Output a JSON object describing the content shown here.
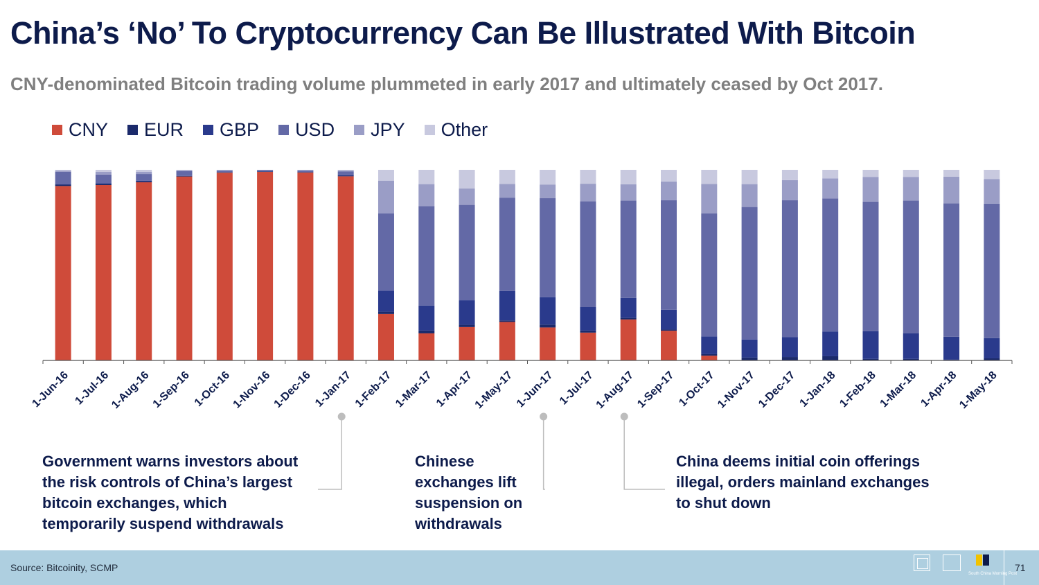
{
  "header": {
    "title": "China’s ‘No’ To Cryptocurrency Can Be Illustrated With Bitcoin",
    "subtitle": "CNY-denominated Bitcoin trading volume plummeted in early 2017 and ultimately ceased by Oct 2017."
  },
  "legend": [
    {
      "label": "CNY",
      "color": "#cf4b3a"
    },
    {
      "label": "EUR",
      "color": "#1b2a6b"
    },
    {
      "label": "GBP",
      "color": "#2a3a8c"
    },
    {
      "label": "USD",
      "color": "#6369a6"
    },
    {
      "label": "JPY",
      "color": "#9a9dc6"
    },
    {
      "label": "Other",
      "color": "#c8c9df"
    }
  ],
  "chart_data": {
    "type": "bar",
    "stacked": true,
    "ylim": [
      0,
      100
    ],
    "unit": "% of trading volume",
    "categories": [
      "1-Jun-16",
      "1-Jul-16",
      "1-Aug-16",
      "1-Sep-16",
      "1-Oct-16",
      "1-Nov-16",
      "1-Dec-16",
      "1-Jan-17",
      "1-Feb-17",
      "1-Mar-17",
      "1-Apr-17",
      "1-May-17",
      "1-Jun-17",
      "1-Jul-17",
      "1-Aug-17",
      "1-Sep-17",
      "1-Oct-17",
      "1-Nov-17",
      "1-Dec-17",
      "1-Jan-18",
      "1-Feb-18",
      "1-Mar-18",
      "1-Apr-18",
      "1-May-18"
    ],
    "series": [
      {
        "name": "CNY",
        "color": "#cf4b3a",
        "values": [
          91.5,
          92.0,
          93.5,
          96.5,
          98.5,
          98.9,
          98.6,
          96.6,
          24.4,
          14.2,
          17.5,
          20.2,
          17.3,
          14.6,
          21.5,
          15.6,
          2.5,
          0,
          0,
          0,
          0,
          0,
          0,
          0
        ]
      },
      {
        "name": "EUR",
        "color": "#1b2a6b",
        "values": [
          0.7,
          0.7,
          0.5,
          0.3,
          0.2,
          0.2,
          0.2,
          0.3,
          1.2,
          1.5,
          1.2,
          0.8,
          1.5,
          1.1,
          0.8,
          0.6,
          0.8,
          1.5,
          1.8,
          2.2,
          0.8,
          0.8,
          0.4,
          1.1
        ]
      },
      {
        "name": "GBP",
        "color": "#2a3a8c",
        "values": [
          0.3,
          0.3,
          0.3,
          0.2,
          0.1,
          0.1,
          0.1,
          0.2,
          11.0,
          13.1,
          12.9,
          15.4,
          14.4,
          12.3,
          10.5,
          10.4,
          9.3,
          9.5,
          10.5,
          13.0,
          14.5,
          13.5,
          12.0,
          10.6
        ]
      },
      {
        "name": "USD",
        "color": "#6369a6",
        "values": [
          6.5,
          4.5,
          3.5,
          2.3,
          0.8,
          0.6,
          0.8,
          2.0,
          40.5,
          52.2,
          50.0,
          49.0,
          52.0,
          55.5,
          51.0,
          57.5,
          64.5,
          69.5,
          71.8,
          69.8,
          68.0,
          69.5,
          70.0,
          70.5
        ]
      },
      {
        "name": "JPY",
        "color": "#9a9dc6",
        "values": [
          0.6,
          1.5,
          1.2,
          0.5,
          0.3,
          0.2,
          0.2,
          0.6,
          17.2,
          11.5,
          8.6,
          7.2,
          7.1,
          9.2,
          8.6,
          9.8,
          15.5,
          12.0,
          10.5,
          10.5,
          13.0,
          12.5,
          14.0,
          13.0
        ]
      },
      {
        "name": "Other",
        "color": "#c8c9df",
        "values": [
          0.4,
          1.0,
          1.0,
          0.2,
          0.1,
          0.0,
          0.1,
          0.3,
          5.7,
          7.5,
          9.8,
          7.4,
          7.7,
          7.3,
          7.6,
          6.1,
          7.4,
          7.5,
          5.4,
          4.5,
          3.7,
          3.7,
          3.6,
          4.8
        ]
      }
    ]
  },
  "annotations": [
    {
      "text": "Government warns investors about the risk controls of China’s largest bitcoin exchanges, which temporarily suspend withdrawals",
      "category": "1-Jan-17"
    },
    {
      "text": "Chinese exchanges lift suspension on withdrawals",
      "category": "1-Jun-17"
    },
    {
      "text": "China deems initial coin offerings illegal, orders mainland exchanges to shut down",
      "category": "1-Aug-17"
    }
  ],
  "footer": {
    "source": "Source: Bitcoinity, SCMP",
    "page_number": "71",
    "logo_caption": "South China Morning Post"
  }
}
